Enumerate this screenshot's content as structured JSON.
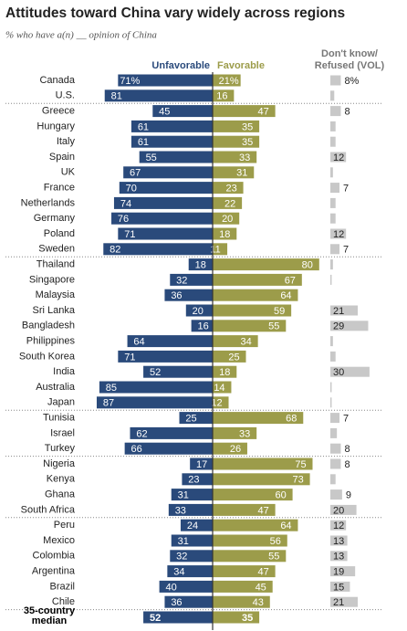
{
  "chart_data": {
    "type": "diverging-bar",
    "title": "Attitudes toward China vary widely across regions",
    "subtitle": "% who have a(n) __ opinion of China",
    "categories": [
      "Canada",
      "U.S.",
      "Greece",
      "Hungary",
      "Italy",
      "Spain",
      "UK",
      "France",
      "Netherlands",
      "Germany",
      "Poland",
      "Sweden",
      "Thailand",
      "Singapore",
      "Malaysia",
      "Sri Lanka",
      "Bangladesh",
      "Philippines",
      "South Korea",
      "India",
      "Australia",
      "Japan",
      "Tunisia",
      "Israel",
      "Turkey",
      "Nigeria",
      "Kenya",
      "Ghana",
      "South Africa",
      "Peru",
      "Mexico",
      "Colombia",
      "Argentina",
      "Brazil",
      "Chile",
      "35-country median"
    ],
    "series": [
      {
        "name": "Unfavorable",
        "color": "#2a4a7b",
        "values": [
          71,
          81,
          45,
          61,
          61,
          55,
          67,
          70,
          74,
          76,
          71,
          82,
          18,
          32,
          36,
          20,
          16,
          64,
          71,
          52,
          85,
          87,
          25,
          62,
          66,
          17,
          23,
          31,
          33,
          24,
          31,
          32,
          34,
          40,
          36,
          52
        ],
        "value_labels": [
          "71%",
          "81",
          "45",
          "61",
          "61",
          "55",
          "67",
          "70",
          "74",
          "76",
          "71",
          "82",
          "18",
          "32",
          "36",
          "20",
          "16",
          "64",
          "71",
          "52",
          "85",
          "87",
          "25",
          "62",
          "66",
          "17",
          "23",
          "31",
          "33",
          "24",
          "31",
          "32",
          "34",
          "40",
          "36",
          "52"
        ]
      },
      {
        "name": "Favorable",
        "color": "#9c9c4a",
        "values": [
          21,
          16,
          47,
          35,
          35,
          33,
          31,
          23,
          22,
          20,
          18,
          11,
          80,
          67,
          64,
          59,
          55,
          34,
          25,
          18,
          14,
          12,
          68,
          33,
          26,
          75,
          73,
          60,
          47,
          64,
          56,
          55,
          47,
          45,
          43,
          35
        ],
        "value_labels": [
          "21%",
          "16",
          "47",
          "35",
          "35",
          "33",
          "31",
          "23",
          "22",
          "20",
          "18",
          "11",
          "80",
          "67",
          "64",
          "59",
          "55",
          "34",
          "25",
          "18",
          "14",
          "12",
          "68",
          "33",
          "26",
          "75",
          "73",
          "60",
          "47",
          "64",
          "56",
          "55",
          "47",
          "45",
          "43",
          "35"
        ]
      },
      {
        "name": "Don't know/ Refused (VOL)",
        "color": "#c8c8c8",
        "values": [
          8,
          3,
          8,
          4,
          4,
          12,
          2,
          7,
          4,
          4,
          12,
          7,
          2,
          1,
          0,
          21,
          29,
          2,
          4,
          30,
          1,
          1,
          7,
          5,
          8,
          8,
          4,
          9,
          20,
          12,
          13,
          13,
          19,
          15,
          21,
          null
        ],
        "value_labels": [
          "8%",
          null,
          "8",
          null,
          null,
          "12",
          null,
          "7",
          null,
          null,
          "12",
          "7",
          null,
          null,
          null,
          "21",
          "29",
          null,
          null,
          "30",
          null,
          null,
          "7",
          null,
          "8",
          "8",
          null,
          "9",
          "20",
          "12",
          "13",
          "13",
          "19",
          "15",
          "21",
          null
        ]
      }
    ]
  }
}
